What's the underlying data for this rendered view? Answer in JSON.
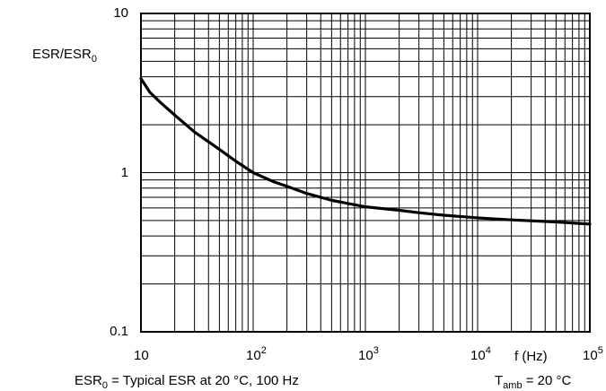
{
  "chart_data": {
    "type": "line",
    "title": "",
    "x_scale": "log",
    "y_scale": "log",
    "xlim": [
      10,
      100000
    ],
    "ylim": [
      0.1,
      10
    ],
    "grid": true,
    "x_ticks": [
      {
        "value": 10,
        "base": "10",
        "exp": ""
      },
      {
        "value": 100,
        "base": "10",
        "exp": "2"
      },
      {
        "value": 1000,
        "base": "10",
        "exp": "3"
      },
      {
        "value": 10000,
        "base": "10",
        "exp": "4"
      },
      {
        "value": 100000,
        "base": "10",
        "exp": "5"
      }
    ],
    "y_ticks": [
      {
        "value": 0.1,
        "label": "0.1"
      },
      {
        "value": 1,
        "label": "1"
      },
      {
        "value": 10,
        "label": "10"
      }
    ],
    "ylabel": {
      "main": "ESR/ESR",
      "sub": "0"
    },
    "xlabel": "f (Hz)",
    "series": [
      {
        "x": [
          10,
          12,
          15,
          20,
          30,
          50,
          70,
          100,
          150,
          200,
          300,
          500,
          700,
          1000,
          2000,
          3000,
          5000,
          10000,
          20000,
          50000,
          100000
        ],
        "y": [
          3.9,
          3.2,
          2.75,
          2.3,
          1.8,
          1.4,
          1.18,
          1.0,
          0.88,
          0.82,
          0.74,
          0.67,
          0.64,
          0.61,
          0.58,
          0.56,
          0.54,
          0.52,
          0.505,
          0.49,
          0.475
        ]
      }
    ],
    "footnote_left": {
      "prefix": "ESR",
      "sub": "0",
      "rest": " = Typical ESR at 20 °C, 100 Hz"
    },
    "footnote_right": {
      "prefix": "T",
      "sub": "amb",
      "rest": " = 20 °C"
    }
  }
}
